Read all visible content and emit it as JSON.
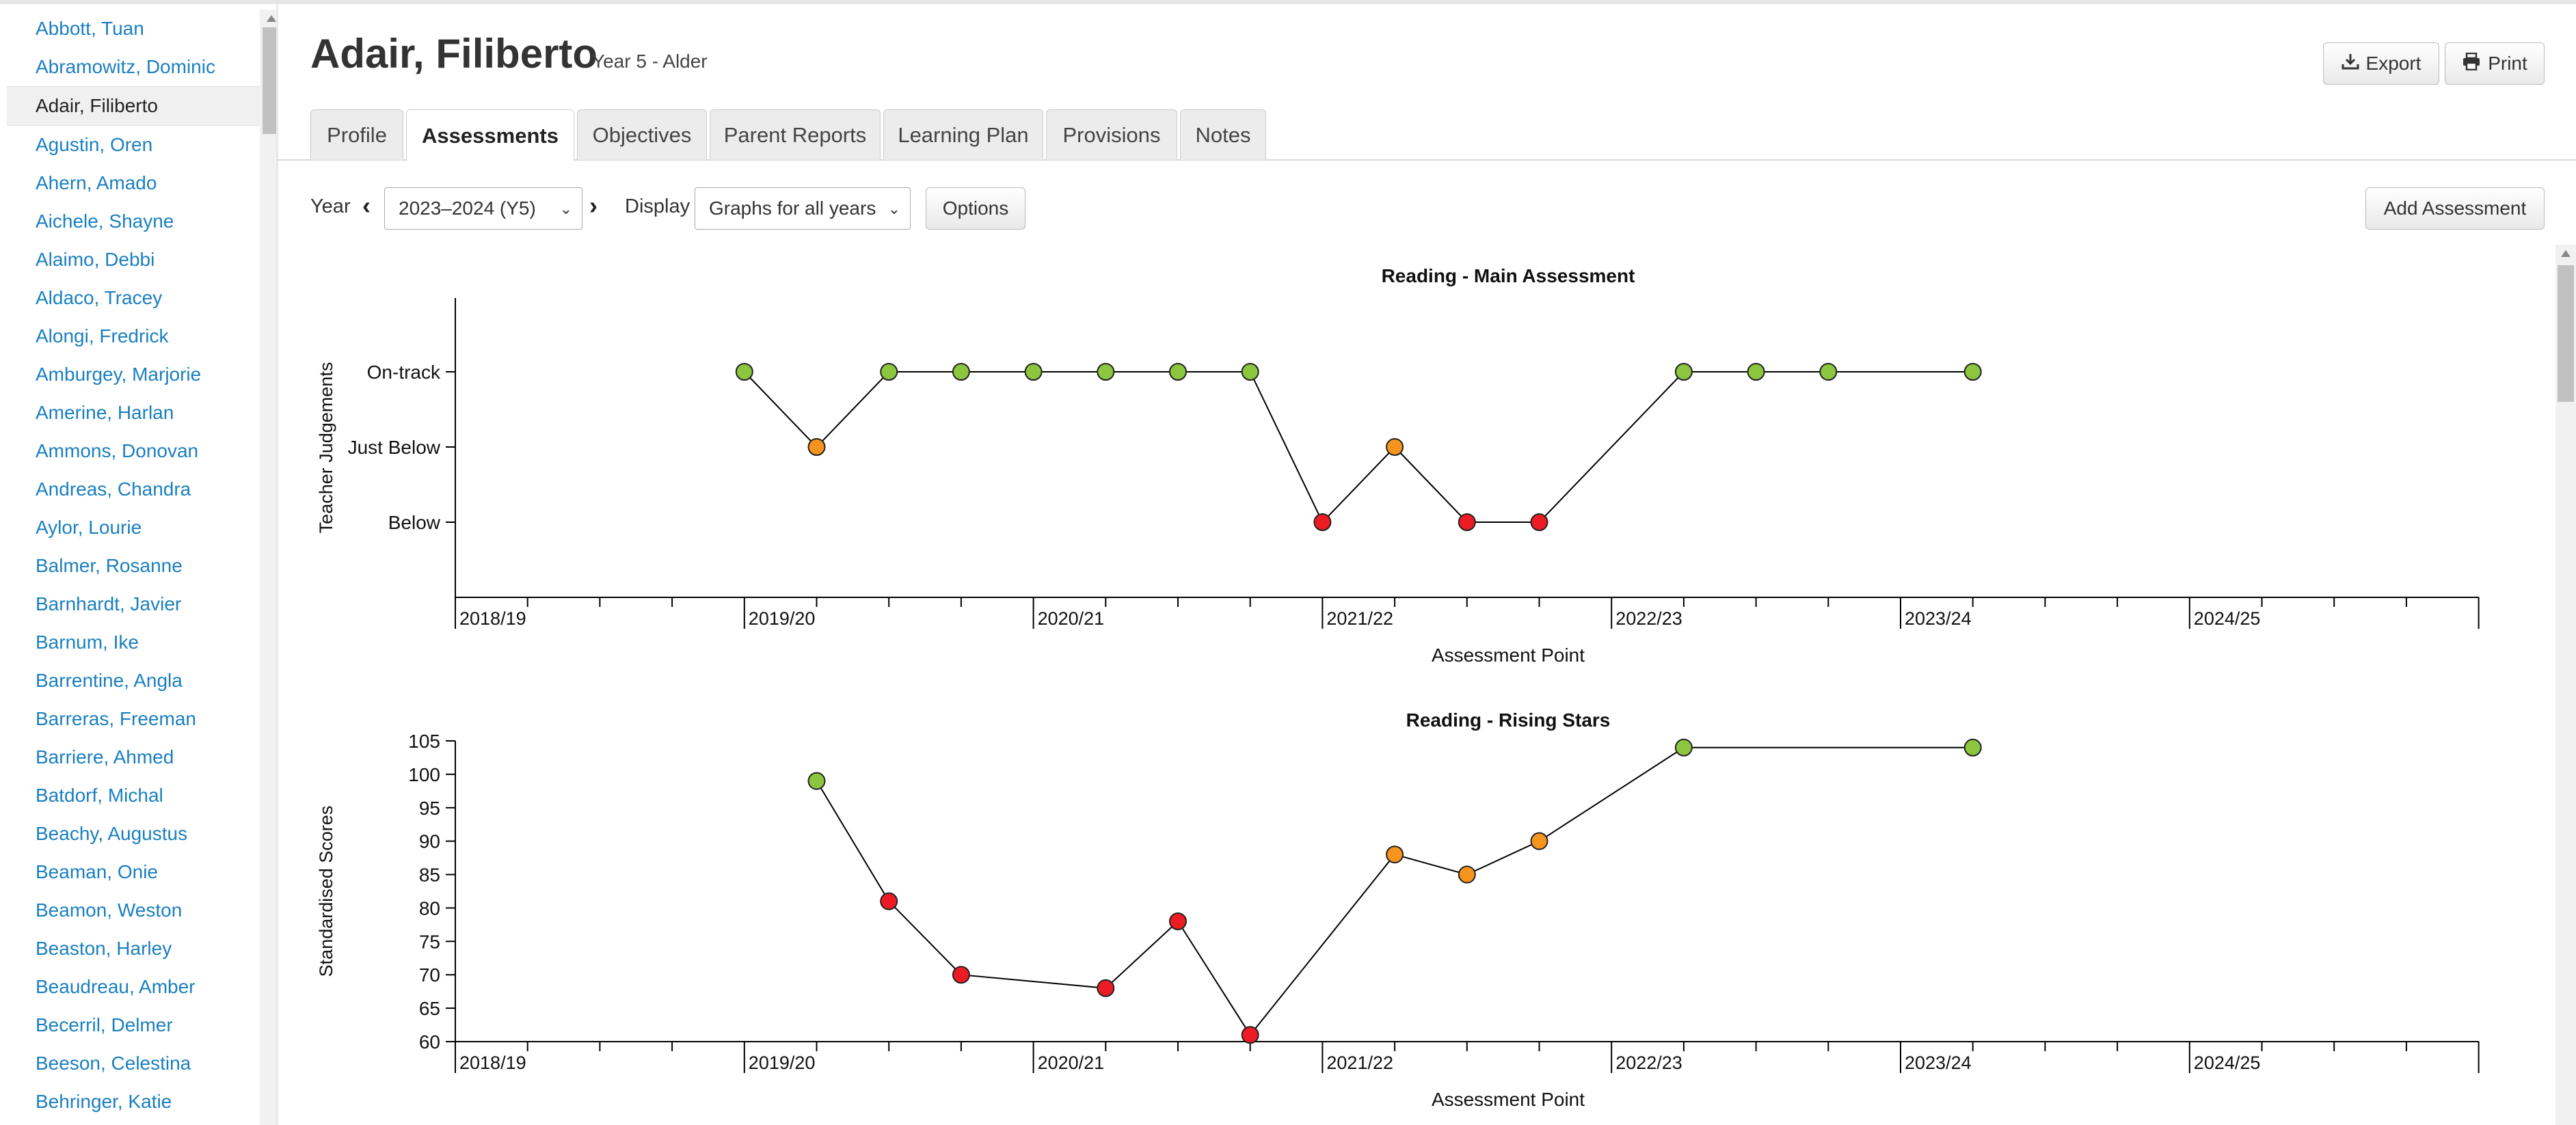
{
  "sidebar": {
    "students": [
      "Abbott, Tuan",
      "Abramowitz, Dominic",
      "Adair, Filiberto",
      "Agustin, Oren",
      "Ahern, Amado",
      "Aichele, Shayne",
      "Alaimo, Debbi",
      "Aldaco, Tracey",
      "Alongi, Fredrick",
      "Amburgey, Marjorie",
      "Amerine, Harlan",
      "Ammons, Donovan",
      "Andreas, Chandra",
      "Aylor, Lourie",
      "Balmer, Rosanne",
      "Barnhardt, Javier",
      "Barnum, Ike",
      "Barrentine, Angla",
      "Barreras, Freeman",
      "Barriere, Ahmed",
      "Batdorf, Michal",
      "Beachy, Augustus",
      "Beaman, Onie",
      "Beamon, Weston",
      "Beaston, Harley",
      "Beaudreau, Amber",
      "Becerril, Delmer",
      "Beeson, Celestina",
      "Behringer, Katie"
    ],
    "active_student": "Adair, Filiberto"
  },
  "header": {
    "name": "Adair, Filiberto",
    "subtitle": "Year 5 - Alder",
    "export_label": "Export",
    "print_label": "Print"
  },
  "tabs": [
    {
      "label": "Profile",
      "active": false
    },
    {
      "label": "Assessments",
      "active": true
    },
    {
      "label": "Objectives",
      "active": false
    },
    {
      "label": "Parent Reports",
      "active": false
    },
    {
      "label": "Learning Plan",
      "active": false
    },
    {
      "label": "Provisions",
      "active": false
    },
    {
      "label": "Notes",
      "active": false
    }
  ],
  "toolbar": {
    "year_label": "Year",
    "year_value": "2023–2024 (Y5)",
    "display_label": "Display",
    "display_value": "Graphs for all years",
    "options_label": "Options",
    "add_assessment_label": "Add Assessment"
  },
  "icons": {
    "export": "download-icon",
    "print": "printer-icon",
    "prev_year": "chevron-left-icon",
    "next_year": "chevron-right-icon"
  },
  "colors": {
    "link": "#1a7fc0",
    "on_track": "#8cc63f",
    "just_below": "#f7941d",
    "below": "#ed1c24"
  },
  "chart_data": [
    {
      "type": "line",
      "title": "Reading - Main Assessment",
      "xlabel": "Assessment Point",
      "ylabel": "Teacher Judgements",
      "x_ticks": [
        "2018/19",
        "2019/20",
        "2020/21",
        "2021/22",
        "2022/23",
        "2023/24",
        "2024/25"
      ],
      "points_per_year": 4,
      "y_categories": [
        "Below",
        "Just Below",
        "On-track"
      ],
      "points": [
        {
          "idx": 4,
          "value": "On-track"
        },
        {
          "idx": 5,
          "value": "Just Below"
        },
        {
          "idx": 6,
          "value": "On-track"
        },
        {
          "idx": 7,
          "value": "On-track"
        },
        {
          "idx": 8,
          "value": "On-track"
        },
        {
          "idx": 9,
          "value": "On-track"
        },
        {
          "idx": 10,
          "value": "On-track"
        },
        {
          "idx": 11,
          "value": "On-track"
        },
        {
          "idx": 12,
          "value": "Below"
        },
        {
          "idx": 13,
          "value": "Just Below"
        },
        {
          "idx": 14,
          "value": "Below"
        },
        {
          "idx": 15,
          "value": "Below"
        },
        {
          "idx": 17,
          "value": "On-track"
        },
        {
          "idx": 18,
          "value": "On-track"
        },
        {
          "idx": 19,
          "value": "On-track"
        },
        {
          "idx": 21,
          "value": "On-track"
        }
      ]
    },
    {
      "type": "line",
      "title": "Reading - Rising Stars",
      "xlabel": "Assessment Point",
      "ylabel": "Standardised Scores",
      "x_ticks": [
        "2018/19",
        "2019/20",
        "2020/21",
        "2021/22",
        "2022/23",
        "2023/24",
        "2024/25"
      ],
      "points_per_year": 4,
      "ylim": [
        60,
        105
      ],
      "y_ticks": [
        60,
        65,
        70,
        75,
        80,
        85,
        90,
        95,
        100,
        105
      ],
      "points": [
        {
          "idx": 5,
          "value": 99,
          "band": "on_track"
        },
        {
          "idx": 6,
          "value": 81,
          "band": "below"
        },
        {
          "idx": 7,
          "value": 70,
          "band": "below"
        },
        {
          "idx": 9,
          "value": 68,
          "band": "below"
        },
        {
          "idx": 10,
          "value": 78,
          "band": "below"
        },
        {
          "idx": 11,
          "value": 61,
          "band": "below"
        },
        {
          "idx": 13,
          "value": 88,
          "band": "just_below"
        },
        {
          "idx": 14,
          "value": 85,
          "band": "just_below"
        },
        {
          "idx": 15,
          "value": 90,
          "band": "just_below"
        },
        {
          "idx": 17,
          "value": 104,
          "band": "on_track"
        },
        {
          "idx": 21,
          "value": 104,
          "band": "on_track"
        }
      ]
    }
  ]
}
